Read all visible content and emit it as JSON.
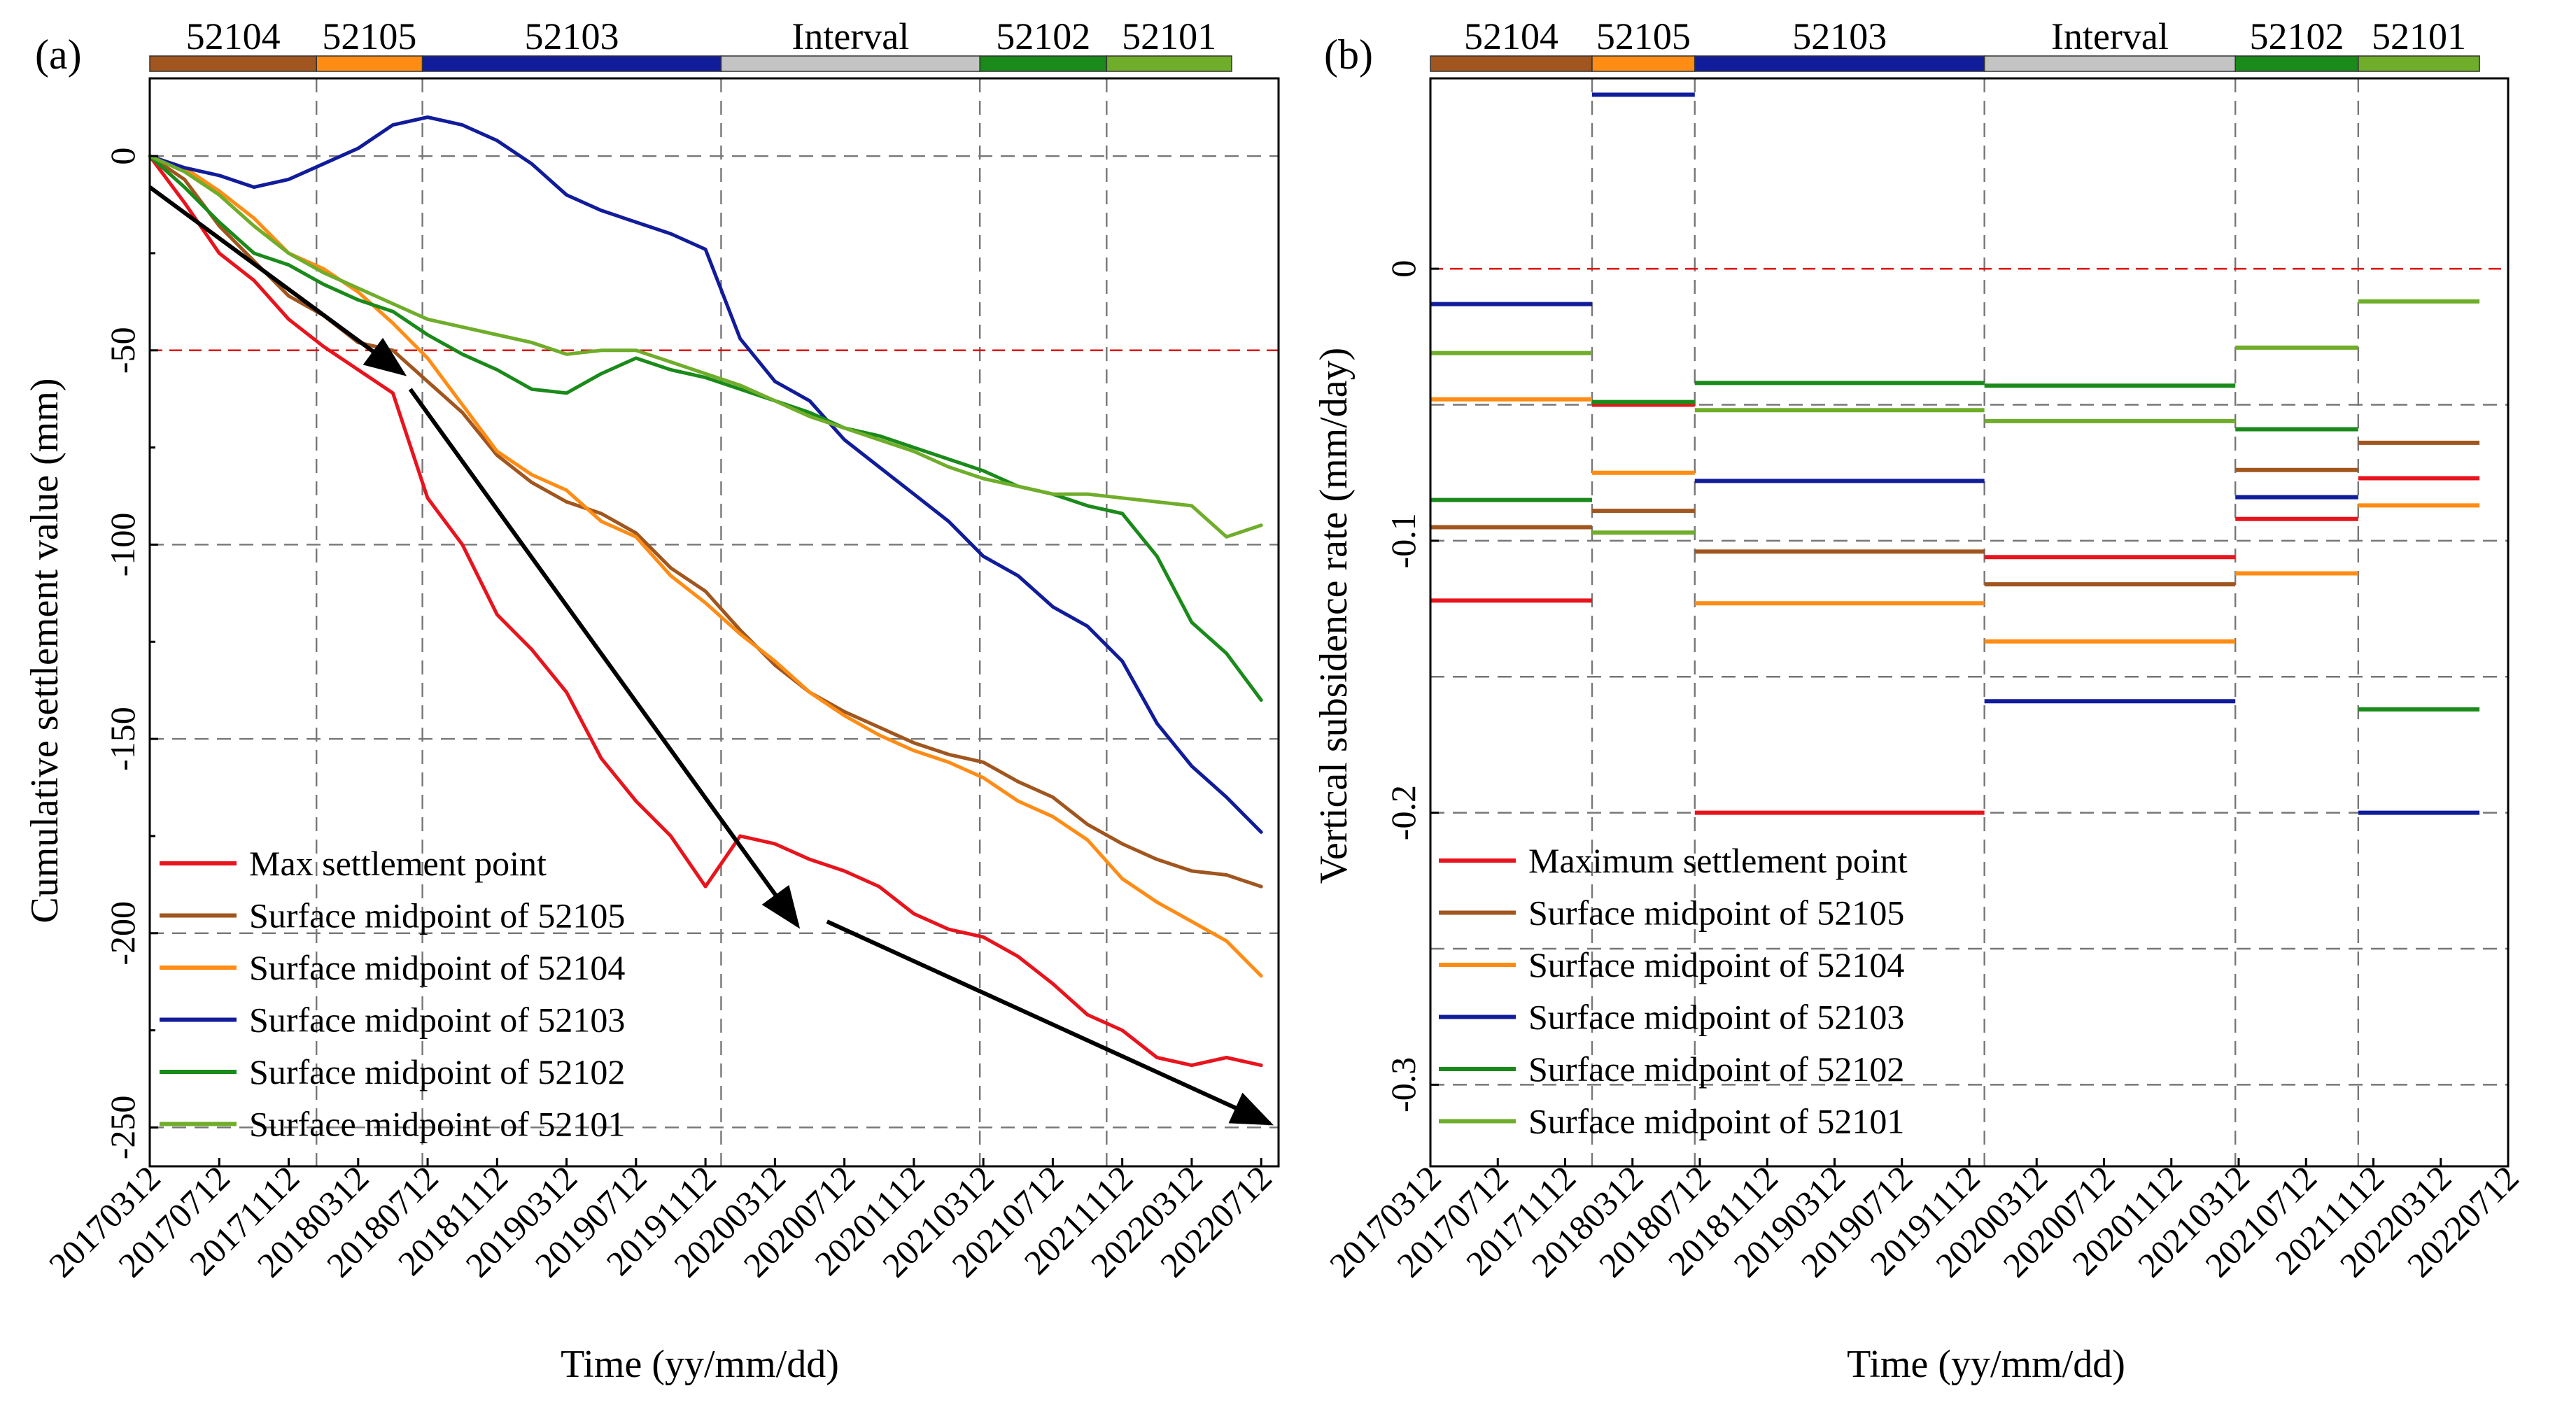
{
  "colors": {
    "max": "#e8141d",
    "s52105": "#a0561e",
    "s52104": "#ff8c14",
    "s52103": "#111c9b",
    "s52102": "#1a8a1a",
    "s52101": "#6fad2a",
    "ref": "#e00000",
    "interval": "#c4c4c4"
  },
  "chart_data": [
    {
      "panel_label": "(a)",
      "type": "line",
      "xlabel": "Time (yy/mm/dd)",
      "ylabel": "Cumulative settlement value (mm)",
      "x_ticks": [
        "20170312",
        "20170712",
        "20171112",
        "20180312",
        "20180712",
        "20181112",
        "20190312",
        "20190712",
        "20191112",
        "20200312",
        "20200712",
        "20201112",
        "20210312",
        "20210712",
        "20211112",
        "20220312",
        "20220712"
      ],
      "y_ticks": [
        0,
        -50,
        -100,
        -150,
        -200,
        -250
      ],
      "y_tick_labels": [
        "0",
        "-50",
        "-100",
        "-150",
        "-200",
        "-250"
      ],
      "xlim_months": [
        0,
        65
      ],
      "ylim": [
        -260,
        20
      ],
      "reference_line": {
        "y": -50,
        "label": "-50"
      },
      "mining_bands": [
        {
          "name": "52104",
          "start": 0,
          "end": 9.6,
          "color": "#a0561e"
        },
        {
          "name": "52105",
          "start": 9.6,
          "end": 15.7,
          "color": "#ff8c14"
        },
        {
          "name": "52103",
          "start": 15.7,
          "end": 32.9,
          "color": "#111c9b"
        },
        {
          "name": "Interval",
          "start": 32.9,
          "end": 47.8,
          "color": "#c4c4c4"
        },
        {
          "name": "52102",
          "start": 47.8,
          "end": 55.1,
          "color": "#1a8a1a"
        },
        {
          "name": "52101",
          "start": 55.1,
          "end": 62.3,
          "color": "#6fad2a"
        }
      ],
      "x_unit": "months since 20170312",
      "series": [
        {
          "key": "max",
          "name": "Max settlement point",
          "x": [
            0,
            2,
            4,
            6,
            8,
            10,
            12,
            14,
            16,
            18,
            20,
            22,
            24,
            26,
            28,
            30,
            32,
            34,
            36,
            38,
            40,
            42,
            44,
            46,
            48,
            50,
            52,
            54,
            56,
            58,
            60,
            62,
            64
          ],
          "y": [
            0,
            -12,
            -25,
            -32,
            -42,
            -49,
            -55,
            -61,
            -88,
            -100,
            -118,
            -127,
            -138,
            -155,
            -166,
            -175,
            -188,
            -175,
            -177,
            -181,
            -184,
            -188,
            -195,
            -199,
            -201,
            -206,
            -213,
            -221,
            -225,
            -232,
            -234,
            -232,
            -234
          ]
        },
        {
          "key": "s52105",
          "name": "Surface midpoint of  52105",
          "x": [
            0,
            2,
            4,
            6,
            8,
            10,
            12,
            14,
            16,
            18,
            20,
            22,
            24,
            26,
            28,
            30,
            32,
            34,
            36,
            38,
            40,
            42,
            44,
            46,
            48,
            50,
            52,
            54,
            56,
            58,
            60,
            62,
            64
          ],
          "y": [
            0,
            -6,
            -18,
            -27,
            -36,
            -41,
            -48,
            -50,
            -58,
            -66,
            -77,
            -84,
            -89,
            -92,
            -97,
            -106,
            -112,
            -122,
            -131,
            -138,
            -143,
            -147,
            -151,
            -154,
            -156,
            -161,
            -165,
            -172,
            -177,
            -181,
            -184,
            -185,
            -188
          ]
        },
        {
          "key": "s52104",
          "name": "Surface midpoint of  52104",
          "x": [
            0,
            2,
            4,
            6,
            8,
            10,
            12,
            14,
            16,
            18,
            20,
            22,
            24,
            26,
            28,
            30,
            32,
            34,
            36,
            38,
            40,
            42,
            44,
            46,
            48,
            50,
            52,
            54,
            56,
            58,
            60,
            62,
            64
          ],
          "y": [
            0,
            -3,
            -9,
            -16,
            -25,
            -29,
            -35,
            -43,
            -52,
            -64,
            -76,
            -82,
            -86,
            -94,
            -98,
            -108,
            -115,
            -123,
            -130,
            -138,
            -144,
            -149,
            -153,
            -156,
            -160,
            -166,
            -170,
            -176,
            -186,
            -192,
            -197,
            -202,
            -211
          ]
        },
        {
          "key": "s52103",
          "name": "Surface midpoint of  52103",
          "x": [
            0,
            2,
            4,
            6,
            8,
            10,
            12,
            14,
            16,
            18,
            20,
            22,
            24,
            26,
            28,
            30,
            32,
            34,
            36,
            38,
            40,
            42,
            44,
            46,
            48,
            50,
            52,
            54,
            56,
            58,
            60,
            62,
            64
          ],
          "y": [
            0,
            -3,
            -5,
            -8,
            -6,
            -2,
            2,
            8,
            10,
            8,
            4,
            -2,
            -10,
            -14,
            -17,
            -20,
            -24,
            -47,
            -58,
            -63,
            -73,
            -80,
            -87,
            -94,
            -103,
            -108,
            -116,
            -121,
            -130,
            -146,
            -157,
            -165,
            -174
          ]
        },
        {
          "key": "s52102",
          "name": "Surface midpoint of  52102",
          "x": [
            0,
            2,
            4,
            6,
            8,
            10,
            12,
            14,
            16,
            18,
            20,
            22,
            24,
            26,
            28,
            30,
            32,
            34,
            36,
            38,
            40,
            42,
            44,
            46,
            48,
            50,
            52,
            54,
            56,
            58,
            60,
            62,
            64
          ],
          "y": [
            0,
            -8,
            -17,
            -25,
            -28,
            -33,
            -37,
            -40,
            -46,
            -51,
            -55,
            -60,
            -61,
            -56,
            -52,
            -55,
            -57,
            -60,
            -63,
            -66,
            -70,
            -72,
            -75,
            -78,
            -81,
            -85,
            -87,
            -90,
            -92,
            -103,
            -120,
            -128,
            -140
          ]
        },
        {
          "key": "s52101",
          "name": "Surface midpoint of  52101",
          "x": [
            0,
            2,
            4,
            6,
            8,
            10,
            12,
            14,
            16,
            18,
            20,
            22,
            24,
            26,
            28,
            30,
            32,
            34,
            36,
            38,
            40,
            42,
            44,
            46,
            48,
            50,
            52,
            54,
            56,
            58,
            60,
            62,
            64
          ],
          "y": [
            0,
            -4,
            -10,
            -18,
            -25,
            -30,
            -34,
            -38,
            -42,
            -44,
            -46,
            -48,
            -51,
            -50,
            -50,
            -53,
            -56,
            -59,
            -63,
            -67,
            -70,
            -73,
            -76,
            -80,
            -83,
            -85,
            -87,
            -87,
            -88,
            -89,
            -90,
            -98,
            -95
          ]
        }
      ],
      "arrows": [
        {
          "from": [
            0,
            -8
          ],
          "to": [
            14.6,
            -56
          ]
        },
        {
          "from": [
            15,
            -60
          ],
          "to": [
            37.3,
            -198
          ]
        },
        {
          "from": [
            39,
            -197
          ],
          "to": [
            64.5,
            -249
          ]
        }
      ]
    },
    {
      "panel_label": "(b)",
      "type": "line",
      "xlabel": "Time (yy/mm/dd)",
      "ylabel": "Vertical subsidence rate (mm/day)",
      "x_ticks": [
        "20170312",
        "20170712",
        "20171112",
        "20180312",
        "20180712",
        "20181112",
        "20190312",
        "20190712",
        "20191112",
        "20200312",
        "20200712",
        "20201112",
        "20210312",
        "20210712",
        "20211112",
        "20220312",
        "20220712"
      ],
      "y_ticks": [
        0,
        -0.1,
        -0.2,
        -0.3
      ],
      "y_tick_labels": [
        "0",
        "-0.1",
        "-0.2",
        "-0.3"
      ],
      "xlim_months": [
        0,
        64
      ],
      "ylim": [
        -0.33,
        0.07
      ],
      "reference_line": {
        "y": 0,
        "label": "0"
      },
      "mining_bands": [
        {
          "name": "52104",
          "start": 0,
          "end": 9.6,
          "color": "#a0561e"
        },
        {
          "name": "52105",
          "start": 9.6,
          "end": 15.7,
          "color": "#ff8c14"
        },
        {
          "name": "52103",
          "start": 15.7,
          "end": 32.9,
          "color": "#111c9b"
        },
        {
          "name": "Interval",
          "start": 32.9,
          "end": 47.8,
          "color": "#c4c4c4"
        },
        {
          "name": "52102",
          "start": 47.8,
          "end": 55.1,
          "color": "#1a8a1a"
        },
        {
          "name": "52101",
          "start": 55.1,
          "end": 62.3,
          "color": "#6fad2a"
        }
      ],
      "x_unit": "months since 20170312",
      "series": [
        {
          "key": "max",
          "name": "Maximum settlement point",
          "segments": [
            [
              0,
              9.6,
              -0.122
            ],
            [
              9.6,
              15.7,
              -0.05
            ],
            [
              15.7,
              32.9,
              -0.2
            ],
            [
              32.9,
              47.8,
              -0.106
            ],
            [
              47.8,
              55.1,
              -0.092
            ],
            [
              55.1,
              62.3,
              -0.077
            ]
          ]
        },
        {
          "key": "s52105",
          "name": "Surface midpoint of  52105",
          "segments": [
            [
              0,
              9.6,
              -0.095
            ],
            [
              9.6,
              15.7,
              -0.089
            ],
            [
              15.7,
              32.9,
              -0.104
            ],
            [
              32.9,
              47.8,
              -0.116
            ],
            [
              47.8,
              55.1,
              -0.074
            ],
            [
              55.1,
              62.3,
              -0.064
            ]
          ]
        },
        {
          "key": "s52104",
          "name": "Surface midpoint of  52104",
          "segments": [
            [
              0,
              9.6,
              -0.048
            ],
            [
              9.6,
              15.7,
              -0.075
            ],
            [
              15.7,
              32.9,
              -0.123
            ],
            [
              32.9,
              47.8,
              -0.137
            ],
            [
              47.8,
              55.1,
              -0.112
            ],
            [
              55.1,
              62.3,
              -0.087
            ]
          ]
        },
        {
          "key": "s52103",
          "name": "Surface midpoint of  52103",
          "segments": [
            [
              0,
              9.6,
              -0.013
            ],
            [
              9.6,
              15.7,
              0.064
            ],
            [
              15.7,
              32.9,
              -0.078
            ],
            [
              32.9,
              47.8,
              -0.159
            ],
            [
              47.8,
              55.1,
              -0.084
            ],
            [
              55.1,
              62.3,
              -0.2
            ]
          ]
        },
        {
          "key": "s52102",
          "name": "Surface midpoint of  52102",
          "segments": [
            [
              0,
              9.6,
              -0.085
            ],
            [
              9.6,
              15.7,
              -0.049
            ],
            [
              15.7,
              32.9,
              -0.042
            ],
            [
              32.9,
              47.8,
              -0.043
            ],
            [
              47.8,
              55.1,
              -0.059
            ],
            [
              55.1,
              62.3,
              -0.162
            ]
          ]
        },
        {
          "key": "s52101",
          "name": "Surface midpoint of  52101",
          "segments": [
            [
              0,
              9.6,
              -0.031
            ],
            [
              9.6,
              15.7,
              -0.097
            ],
            [
              15.7,
              32.9,
              -0.052
            ],
            [
              32.9,
              47.8,
              -0.056
            ],
            [
              47.8,
              55.1,
              -0.029
            ],
            [
              55.1,
              62.3,
              -0.012
            ]
          ]
        }
      ]
    }
  ]
}
